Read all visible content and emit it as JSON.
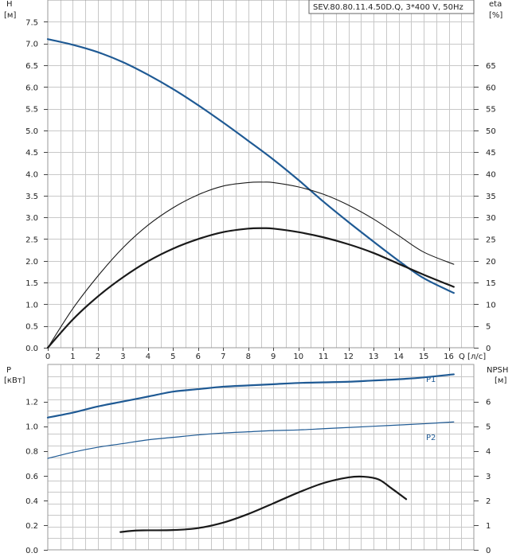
{
  "chart_data": [
    {
      "type": "line",
      "legend": "SEV.80.80.11.4.50D.Q, 3*400 V, 50Hz",
      "left_axis": {
        "label": "H",
        "unit": "[м]",
        "range": [
          0,
          8.0
        ],
        "ticks": [
          "0.0",
          "0.5",
          "1.0",
          "1.5",
          "2.0",
          "2.5",
          "3.0",
          "3.5",
          "4.0",
          "4.5",
          "5.0",
          "5.5",
          "6.0",
          "6.5",
          "7.0",
          "7.5"
        ]
      },
      "right_axis": {
        "label": "eta",
        "unit": "[%]",
        "range": [
          0,
          80
        ],
        "ticks": [
          "0",
          "5",
          "10",
          "15",
          "20",
          "25",
          "30",
          "35",
          "40",
          "45",
          "50",
          "55",
          "60",
          "65"
        ]
      },
      "x_axis": {
        "unit": "Q [л/с]",
        "range": [
          0,
          17
        ],
        "ticks": [
          "0",
          "1",
          "2",
          "3",
          "4",
          "5",
          "6",
          "7",
          "8",
          "9",
          "10",
          "11",
          "12",
          "13",
          "14",
          "15",
          "16"
        ]
      },
      "grid": true,
      "series": [
        {
          "axis": "left",
          "color": "#1f5a94",
          "width": 2.2,
          "x": [
            0,
            1,
            2,
            3,
            4,
            5,
            6,
            7,
            8,
            9,
            10,
            11,
            12,
            13,
            14,
            15,
            16.2
          ],
          "y": [
            7.1,
            6.97,
            6.8,
            6.57,
            6.28,
            5.95,
            5.58,
            5.18,
            4.76,
            4.33,
            3.86,
            3.36,
            2.89,
            2.44,
            2.0,
            1.6,
            1.26
          ]
        },
        {
          "axis": "right",
          "color": "#1a1a1a",
          "width": 1.1,
          "x": [
            0,
            1,
            2,
            3,
            4,
            5,
            6,
            7,
            8,
            8.6,
            9,
            10,
            11,
            12,
            13,
            14,
            15,
            16.2
          ],
          "y": [
            0,
            9,
            16.5,
            23,
            28.2,
            32.2,
            35.2,
            37.2,
            38.0,
            38.1,
            38.0,
            37.0,
            35.3,
            32.8,
            29.6,
            25.8,
            22.0,
            19.2
          ]
        },
        {
          "axis": "right",
          "color": "#1a1a1a",
          "width": 2.2,
          "x": [
            0,
            1,
            2,
            3,
            4,
            5,
            6,
            7,
            8,
            8.6,
            9,
            10,
            11,
            12,
            13,
            14,
            15,
            16.2
          ],
          "y": [
            0,
            6.5,
            11.8,
            16.2,
            19.9,
            22.8,
            25.0,
            26.6,
            27.4,
            27.5,
            27.4,
            26.6,
            25.4,
            23.8,
            21.8,
            19.3,
            16.8,
            14.0
          ]
        }
      ]
    },
    {
      "type": "line",
      "left_axis": {
        "label": "P",
        "unit": "[кВт]",
        "range": [
          0,
          1.5
        ],
        "ticks": [
          "0.0",
          "0.2",
          "0.4",
          "0.6",
          "0.8",
          "1.0",
          "1.2"
        ]
      },
      "right_axis": {
        "label": "NPSH",
        "unit": "[м]",
        "range": [
          0,
          7.5
        ],
        "ticks": [
          "0",
          "1",
          "2",
          "3",
          "4",
          "5",
          "6"
        ]
      },
      "x_axis": {
        "range": [
          0,
          17
        ]
      },
      "grid": true,
      "series": [
        {
          "name": "P1",
          "axis": "left",
          "color": "#1f5a94",
          "width": 2.2,
          "x": [
            0,
            1,
            2,
            3,
            4,
            5,
            6,
            7,
            8,
            9,
            10,
            11,
            12,
            13,
            14,
            15,
            16.2
          ],
          "y": [
            1.07,
            1.11,
            1.16,
            1.2,
            1.24,
            1.28,
            1.3,
            1.32,
            1.33,
            1.34,
            1.35,
            1.355,
            1.36,
            1.37,
            1.38,
            1.395,
            1.42
          ]
        },
        {
          "name": "P2",
          "axis": "left",
          "color": "#1f5a94",
          "width": 1.2,
          "x": [
            0,
            1,
            2,
            3,
            4,
            5,
            6,
            7,
            8,
            9,
            10,
            11,
            12,
            13,
            14,
            15,
            16.2
          ],
          "y": [
            0.74,
            0.79,
            0.83,
            0.86,
            0.89,
            0.91,
            0.93,
            0.945,
            0.955,
            0.965,
            0.97,
            0.98,
            0.99,
            1.0,
            1.01,
            1.02,
            1.035
          ]
        },
        {
          "axis": "right",
          "color": "#1a1a1a",
          "width": 2.2,
          "x": [
            2.9,
            3.5,
            4,
            5,
            6,
            7,
            8,
            9,
            10,
            11,
            12,
            12.6,
            13.2,
            13.7,
            14.3
          ],
          "y": [
            0.72,
            0.78,
            0.79,
            0.8,
            0.88,
            1.1,
            1.45,
            1.88,
            2.32,
            2.7,
            2.93,
            2.96,
            2.85,
            2.5,
            2.05
          ]
        }
      ],
      "curve_labels": [
        "P1",
        "P2"
      ]
    }
  ]
}
